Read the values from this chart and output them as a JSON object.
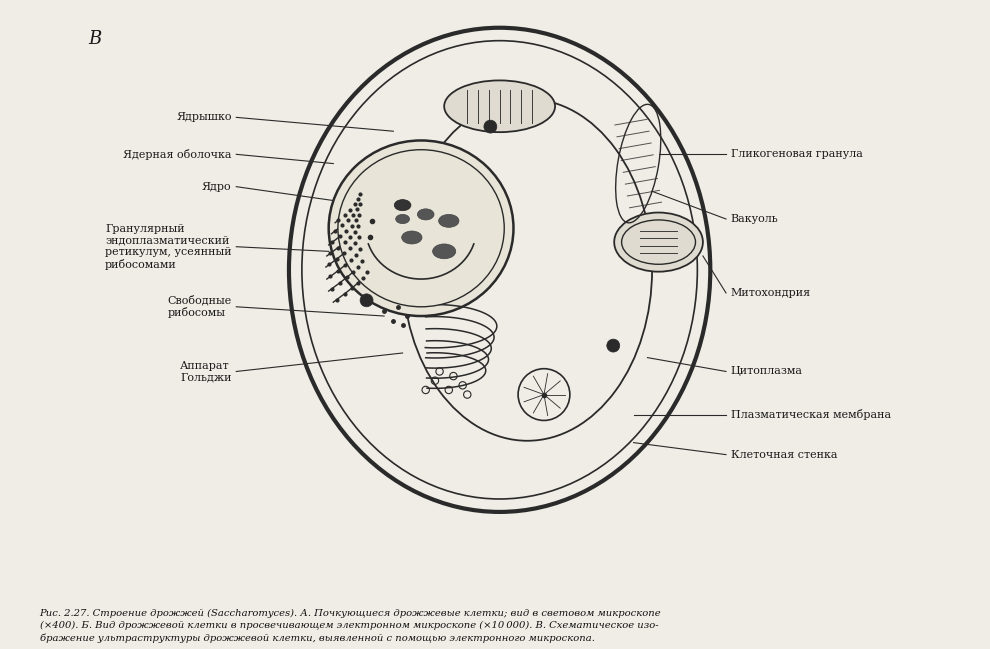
{
  "title_letter": "B",
  "background_color": "#f0ede6",
  "cell_fill_color": "#f0ede6",
  "line_color": "#2a2a2a",
  "caption": "Рис. 2.27. Строение дрожжей (Saccharomyces). А. Почкующиеся дрожжевые клетки; вид в световом микроскопе\n(×400). Б. Вид дрожжевой клетки в просвечивающем электронном микроскопе (×10 000). В. Схематическое изо-\nбражение ультраструктуры дрожжевой клетки, выявленной с помощью электронного микроскопа.",
  "labels": {
    "cell_wall": "Клеточная стенка",
    "plasma_membrane": "Плазматическая мембрана",
    "cytoplasm": "Цитоплазма",
    "mitochondria": "Митохондрия",
    "vacuole": "Вакуоль",
    "glycogen": "Гликогеновая гранула",
    "nucleus": "Ядро",
    "nuclear_envelope": "Ядерная оболочка",
    "nucleolus": "Ядрышко",
    "er": "Гранулярный\nэндоплазматический\nретикулум, усеянный\nрибосомами",
    "ribosomes": "Свободные\nрибосомы",
    "golgi": "Аппарат\nГольджи"
  }
}
